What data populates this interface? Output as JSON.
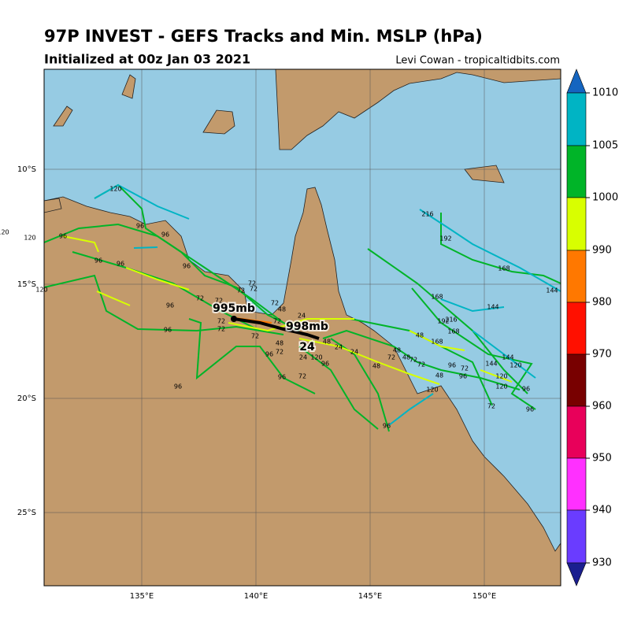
{
  "header": {
    "title": "97P INVEST - GEFS Tracks and Min. MSLP (hPa)",
    "subtitle": "Initialized at 00z Jan 03 2021",
    "credit": "Levi Cowan - tropicaltidbits.com"
  },
  "map": {
    "lon_labels": [
      "135°E",
      "140°E",
      "145°E",
      "150°E"
    ],
    "lat_labels": [
      "10°S",
      "15°S",
      "20°S",
      "25°S"
    ],
    "annotations": [
      "995mb",
      "998mb",
      "24"
    ],
    "track_labels": [
      "120",
      "96",
      "96",
      "96",
      "120",
      "120",
      "96",
      "96",
      "96",
      "120",
      "96",
      "72",
      "72",
      "96",
      "72",
      "72",
      "72",
      "72",
      "72",
      "72",
      "72",
      "72",
      "48",
      "24",
      "48",
      "72",
      "96",
      "96",
      "72",
      "24",
      "120",
      "96",
      "48",
      "24",
      "24",
      "48",
      "72",
      "48",
      "48",
      "72",
      "72",
      "48",
      "168",
      "48",
      "120",
      "96",
      "96",
      "72",
      "144",
      "120",
      "120",
      "120",
      "144",
      "96",
      "96",
      "72",
      "96",
      "168",
      "144",
      "168",
      "192",
      "216",
      "216",
      "192",
      "168",
      "144",
      "96"
    ]
  },
  "colorbar": {
    "ticks": [
      "1010",
      "1005",
      "1000",
      "990",
      "980",
      "970",
      "960",
      "950",
      "940",
      "930"
    ]
  }
}
